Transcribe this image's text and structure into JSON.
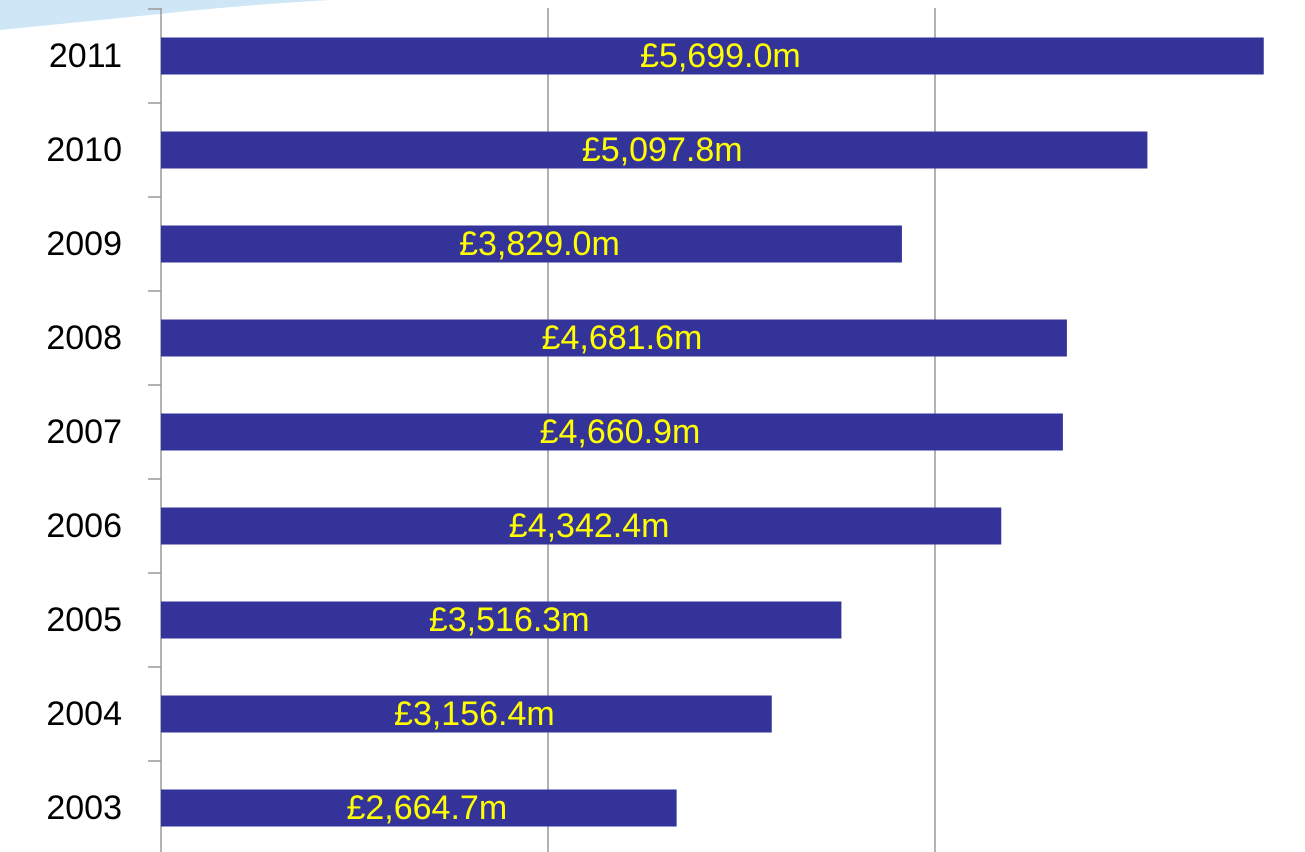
{
  "chart_data": {
    "type": "hbar",
    "categories": [
      "2011",
      "2010",
      "2009",
      "2008",
      "2007",
      "2006",
      "2005",
      "2004",
      "2003"
    ],
    "values": [
      5699.0,
      5097.8,
      3829.0,
      4681.6,
      4660.9,
      4342.4,
      3516.3,
      3156.4,
      2664.7
    ],
    "value_labels": [
      "£5,699.0m",
      "£5,097.8m",
      "£3,829.0m",
      "£4,681.6m",
      "£4,660.9m",
      "£4,342.4m",
      "£3,516.3m",
      "£3,156.4m",
      "£2,664.7m"
    ],
    "color": "#333399",
    "label_color": "#ffff00",
    "xlim": [
      0,
      6000
    ],
    "xticks": [
      0,
      2000,
      4000
    ],
    "grid": true
  }
}
